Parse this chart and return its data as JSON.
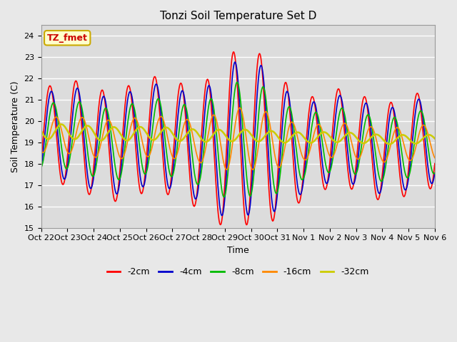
{
  "title": "Tonzi Soil Temperature Set D",
  "xlabel": "Time",
  "ylabel": "Soil Temperature (C)",
  "ylim": [
    15.0,
    24.5
  ],
  "yticks": [
    15.0,
    16.0,
    17.0,
    18.0,
    19.0,
    20.0,
    21.0,
    22.0,
    23.0,
    24.0
  ],
  "xtick_labels": [
    "Oct 22",
    "Oct 23",
    "Oct 24",
    "Oct 25",
    "Oct 26",
    "Oct 27",
    "Oct 28",
    "Oct 29",
    "Oct 30",
    "Oct 31",
    "Nov 1",
    "Nov 2",
    "Nov 3",
    "Nov 4",
    "Nov 5",
    "Nov 6"
  ],
  "annotation_text": "TZ_fmet",
  "annotation_bg": "#FFFFCC",
  "annotation_border": "#CCAA00",
  "annotation_text_color": "#CC0000",
  "fig_bg": "#E8E8E8",
  "plot_bg": "#DCDCDC",
  "legend_labels": [
    "-2cm",
    "-4cm",
    "-8cm",
    "-16cm",
    "-32cm"
  ],
  "line_colors": [
    "#FF0000",
    "#0000CC",
    "#00BB00",
    "#FF8800",
    "#CCCC00"
  ],
  "line_widths": [
    1.2,
    1.2,
    1.2,
    1.2,
    1.8
  ],
  "n_points": 720,
  "n_days": 15
}
